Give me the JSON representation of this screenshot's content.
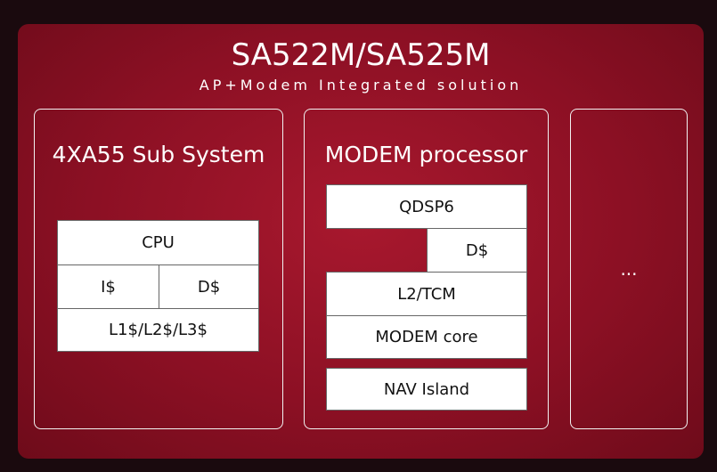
{
  "header": {
    "title": "SA522M/SA525M",
    "subtitle": "AP+Modem Integrated solution"
  },
  "ap_subsystem": {
    "title": "4XA55 Sub System",
    "cpu": "CPU",
    "icache": "I$",
    "dcache": "D$",
    "caches": "L1$/L2$/L3$"
  },
  "modem": {
    "title": "MODEM processor",
    "qdsp": "QDSP6",
    "dcache": "D$",
    "l2": "L2/TCM",
    "core": "MODEM core",
    "nav": "NAV Island"
  },
  "more": {
    "label": "..."
  },
  "colors": {
    "panel": "#8c1024",
    "boxes": "#ffffff"
  }
}
